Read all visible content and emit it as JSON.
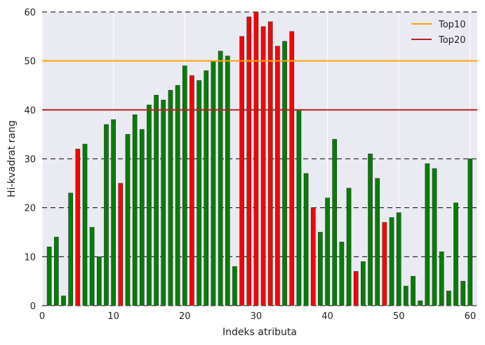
{
  "chart_data": {
    "type": "bar",
    "xlabel": "Indeks atributa",
    "ylabel": "Hi-kvadrat rang",
    "xlim": [
      0,
      61
    ],
    "ylim": [
      0,
      60
    ],
    "xticks": [
      0,
      10,
      20,
      30,
      40,
      50,
      60
    ],
    "yticks": [
      0,
      10,
      20,
      30,
      40,
      50,
      60
    ],
    "grid": true,
    "legend_position": "top-right",
    "x": [
      1,
      2,
      3,
      4,
      5,
      6,
      7,
      8,
      9,
      10,
      11,
      12,
      13,
      14,
      15,
      16,
      17,
      18,
      19,
      20,
      21,
      22,
      23,
      24,
      25,
      26,
      27,
      28,
      29,
      30,
      31,
      32,
      33,
      34,
      35,
      36,
      37,
      38,
      39,
      40,
      41,
      42,
      43,
      44,
      45,
      46,
      47,
      48,
      49,
      50,
      51,
      52,
      53,
      54,
      55,
      56,
      57,
      58,
      59,
      60
    ],
    "values": [
      12,
      14,
      2,
      23,
      32,
      33,
      16,
      10,
      37,
      38,
      25,
      35,
      39,
      36,
      41,
      43,
      42,
      44,
      45,
      49,
      47,
      46,
      48,
      50,
      52,
      51,
      8,
      55,
      59,
      60,
      57,
      58,
      53,
      54,
      56,
      40,
      27,
      20,
      15,
      22,
      34,
      13,
      24,
      7,
      9,
      31,
      26,
      17,
      18,
      19,
      4,
      6,
      1,
      29,
      28,
      11,
      3,
      21,
      5,
      30
    ],
    "bar_colors": [
      "green",
      "green",
      "green",
      "green",
      "red",
      "green",
      "green",
      "green",
      "green",
      "green",
      "red",
      "green",
      "green",
      "green",
      "green",
      "green",
      "green",
      "green",
      "green",
      "green",
      "red",
      "green",
      "green",
      "green",
      "green",
      "green",
      "green",
      "red",
      "red",
      "red",
      "red",
      "red",
      "red",
      "green",
      "red",
      "green",
      "green",
      "red",
      "green",
      "green",
      "green",
      "green",
      "green",
      "red",
      "green",
      "green",
      "green",
      "red",
      "green",
      "green",
      "green",
      "green",
      "green",
      "green",
      "green",
      "green",
      "green",
      "green",
      "green",
      "green"
    ],
    "reference_lines": [
      {
        "name": "Top10",
        "value": 50,
        "color": "#ffa500"
      },
      {
        "name": "Top20",
        "value": 40,
        "color": "#b22222"
      }
    ],
    "colors": {
      "green": "#008000",
      "red": "#ff0000",
      "background": "#eaeaf2"
    }
  }
}
